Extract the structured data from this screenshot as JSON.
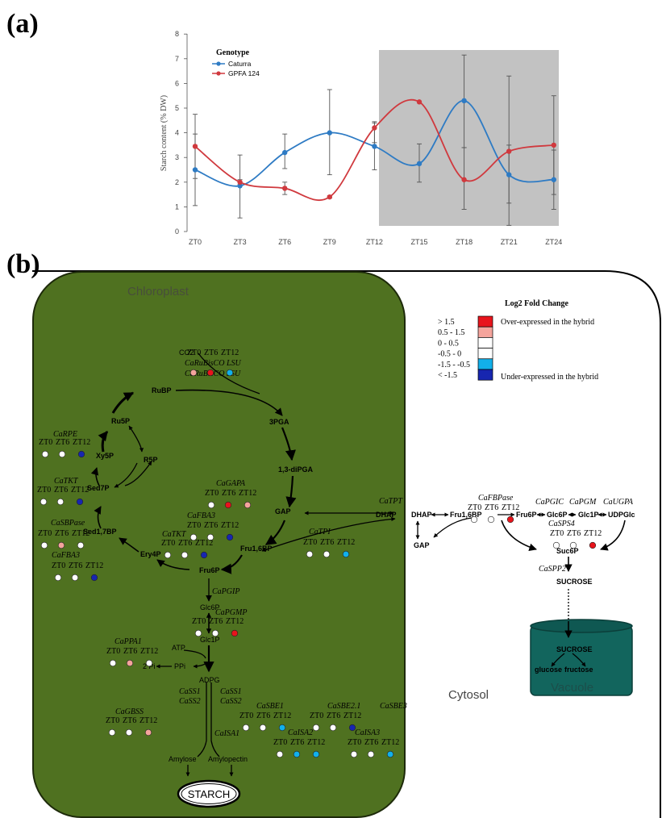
{
  "panel_a": {
    "label": "(a)",
    "chart_data": {
      "type": "line",
      "ylabel": "Starch content (% DW)",
      "xlabel": "",
      "categories": [
        "ZT0",
        "ZT3",
        "ZT6",
        "ZT9",
        "ZT12",
        "ZT15",
        "ZT18",
        "ZT21",
        "ZT24"
      ],
      "ylim": [
        0,
        8
      ],
      "yticks": [
        0,
        1,
        2,
        3,
        4,
        5,
        6,
        7,
        8
      ],
      "legend_title": "Genotype",
      "legend_position": "top-left",
      "shaded_region": [
        "ZT12",
        "ZT24"
      ],
      "series": [
        {
          "name": "Caturra",
          "color": "#2e7bc4",
          "values": [
            2.5,
            1.85,
            3.2,
            4.0,
            3.45,
            2.75,
            5.3,
            2.3,
            2.1
          ],
          "error_low": [
            1.05,
            0.55,
            2.55,
            2.3,
            2.5,
            2.0,
            3.4,
            0.25,
            0.9
          ],
          "error_high": [
            3.95,
            3.1,
            3.95,
            5.75,
            4.45,
            3.55,
            7.15,
            6.3,
            3.3
          ]
        },
        {
          "name": "GPFA 124",
          "color": "#d0393e",
          "values": [
            3.45,
            2.0,
            1.75,
            1.4,
            4.2,
            5.25,
            2.1,
            3.25,
            3.5
          ],
          "error_low": [
            2.15,
            1.9,
            1.5,
            1.35,
            3.6,
            5.25,
            0.9,
            1.15,
            1.5
          ],
          "error_high": [
            4.75,
            2.1,
            2.0,
            1.45,
            4.4,
            5.25,
            3.4,
            3.5,
            5.5
          ]
        }
      ]
    }
  },
  "panel_b": {
    "label": "(b)",
    "compartments": {
      "chloroplast": "Chloroplast",
      "cytosol": "Cytosol",
      "vacuole": "Vacuole"
    },
    "legend": {
      "title": "Log2 Fold Change",
      "bins": [
        {
          "label": "> 1.5",
          "color": "#e8141c"
        },
        {
          "label": "0.5 - 1.5",
          "color": "#f4a49c"
        },
        {
          "label": "0 - 0.5",
          "color": "#ffffff"
        },
        {
          "label": "-0.5 - 0",
          "color": "#ffffff"
        },
        {
          "label": "-1.5 - -0.5",
          "color": "#12b0ea"
        },
        {
          "label": "< -1.5",
          "color": "#1726b0"
        }
      ],
      "over": "Over-expressed in the hybrid",
      "under": "Under-expressed in the hybrid"
    },
    "metabolites": {
      "co2": "CO2",
      "rubp": "RuBP",
      "pga3": "3PGA",
      "dipga": "1,3-diPGA",
      "gap": "GAP",
      "fru16bp": "Fru1,6BP",
      "fru6p": "Fru6P",
      "ery4p": "Ery4P",
      "sed17bp": "Sed1,7BP",
      "sed7p": "Sed7P",
      "xy5p": "Xy5P",
      "ru5p": "Ru5P",
      "r5p": "R5P",
      "glc6p": "Glc6P",
      "glc1p": "Glc1P",
      "atp": "ATP",
      "ppi": "PPi",
      "pi2": "2 Pi",
      "adpg": "ADPG",
      "amylose": "Amylose",
      "amylopectin": "Amylopectin",
      "starch": "STARCH",
      "dhap_c": "DHAP",
      "dhap": "DHAP",
      "gap_c": "GAP",
      "fru16bp_c": "Fru1,6BP",
      "fru6p_c": "Fru6P",
      "glc6p_c": "Glc6P",
      "glc1p_c": "Glc1P",
      "udpglc": "UDPGlc",
      "suc6p": "Suc6P",
      "sucrose": "SUCROSE",
      "sucrose_v": "SUCROSE",
      "glucose": "glucose",
      "fructose": "fructose"
    },
    "enzymes": {
      "rubisco_lsu": "CaRuBisCO LSU",
      "rubisco_ssu": "CaRuBisCO SSU",
      "rpe": "CaRPE",
      "tkt1": "CaTKT",
      "sbpase": "CaSBPase",
      "fba3a": "CaFBA3",
      "gapa": "CaGAPA",
      "fba3b": "CaFBA3",
      "tkt2": "CaTKT",
      "tpi": "CaTPI",
      "tpt": "CaTPT",
      "pgip": "CaPGIP",
      "pgmp": "CaPGMP",
      "ppa1": "CaPPA1",
      "gbss": "CaGBSS",
      "ss1a": "CaSS1",
      "ss2a": "CaSS2",
      "ss1b": "CaSS1",
      "ss2b": "CaSS2",
      "isa1": "CaISA1",
      "sbe1": "CaSBE1",
      "sbe21": "CaSBE2.1",
      "sbe3": "CaSBE3",
      "isa2": "CaISA2",
      "isa3": "CaISA3",
      "fbpase": "CaFBPase",
      "pgic": "CaPGIC",
      "pgm": "CaPGM",
      "ugpa": "CaUGPA",
      "sps4": "CaSPS4",
      "spp2": "CaSPP2"
    },
    "timepoints": [
      "ZT0",
      "ZT6",
      "ZT12"
    ],
    "expression": [
      {
        "gene": "rubisco_lsu",
        "levels": [
          "white",
          "white",
          "white"
        ]
      },
      {
        "gene": "rubisco_ssu",
        "levels": [
          "pink",
          "red",
          "cyan"
        ]
      },
      {
        "gene": "rpe",
        "levels": [
          "white",
          "white",
          "blue"
        ]
      },
      {
        "gene": "tkt1",
        "levels": [
          "white",
          "white",
          "blue"
        ]
      },
      {
        "gene": "sbpase",
        "levels": [
          "white",
          "pink",
          "white"
        ]
      },
      {
        "gene": "fba3a",
        "levels": [
          "white",
          "white",
          "blue"
        ]
      },
      {
        "gene": "gapa",
        "levels": [
          "white",
          "red",
          "pink"
        ]
      },
      {
        "gene": "fba3b",
        "levels": [
          "white",
          "white",
          "blue"
        ]
      },
      {
        "gene": "tkt2",
        "levels": [
          "white",
          "white",
          "blue"
        ]
      },
      {
        "gene": "tpi",
        "levels": [
          "white",
          "white",
          "cyan"
        ]
      },
      {
        "gene": "pgmp",
        "levels": [
          "white",
          "white",
          "red"
        ]
      },
      {
        "gene": "ppa1",
        "levels": [
          "white",
          "pink",
          "white"
        ]
      },
      {
        "gene": "gbss",
        "levels": [
          "white",
          "white",
          "pink"
        ]
      },
      {
        "gene": "sbe1",
        "levels": [
          "white",
          "white",
          "cyan"
        ]
      },
      {
        "gene": "sbe21",
        "levels": [
          "white",
          "white",
          "blue"
        ]
      },
      {
        "gene": "isa2",
        "levels": [
          "white",
          "cyan",
          "cyan"
        ]
      },
      {
        "gene": "isa3",
        "levels": [
          "white",
          "white",
          "cyan"
        ]
      },
      {
        "gene": "fbpase",
        "levels": [
          "white",
          "white",
          "red"
        ]
      },
      {
        "gene": "sps4",
        "levels": [
          "white",
          "white",
          "red"
        ]
      }
    ],
    "level_colors": {
      "white": "#ffffff",
      "pink": "#f4a49c",
      "red": "#e8141c",
      "cyan": "#12b0ea",
      "blue": "#1726b0"
    }
  }
}
